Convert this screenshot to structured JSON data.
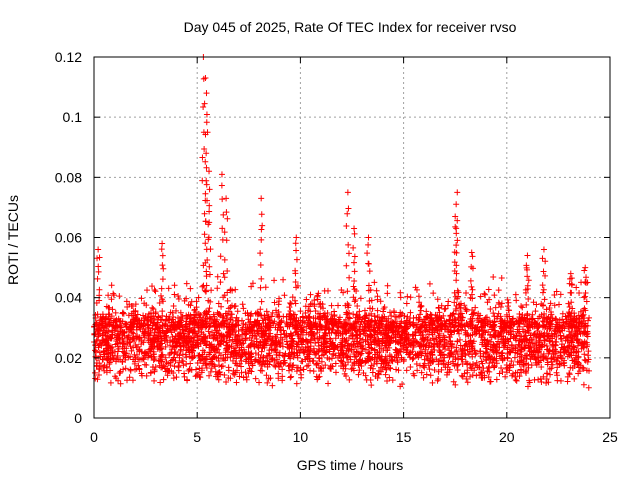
{
  "chart_data": {
    "type": "scatter",
    "title": "Day 045 of 2025, Rate Of TEC Index for receiver rvso",
    "xlabel": "GPS time / hours",
    "ylabel": "ROTI / TECUs",
    "xlim": [
      0,
      25
    ],
    "ylim": [
      0,
      0.12
    ],
    "x_ticks": [
      "0",
      "5",
      "10",
      "15",
      "20",
      "25"
    ],
    "y_ticks": [
      "0",
      "0.02",
      "0.04",
      "0.06",
      "0.08",
      "0.1",
      "0.12"
    ],
    "grid": true,
    "marker": "+",
    "series": [
      {
        "name": "ROTI",
        "color": "#ff0000",
        "x_range": [
          0,
          24
        ],
        "baseline_band": [
          0.007,
          0.035
        ],
        "peaks": [
          {
            "x": 0.2,
            "y": 0.056
          },
          {
            "x": 3.3,
            "y": 0.058
          },
          {
            "x": 5.3,
            "y": 0.12
          },
          {
            "x": 5.4,
            "y": 0.113
          },
          {
            "x": 5.45,
            "y": 0.108
          },
          {
            "x": 5.5,
            "y": 0.095
          },
          {
            "x": 5.6,
            "y": 0.076
          },
          {
            "x": 6.2,
            "y": 0.081
          },
          {
            "x": 6.4,
            "y": 0.073
          },
          {
            "x": 8.1,
            "y": 0.073
          },
          {
            "x": 9.8,
            "y": 0.06
          },
          {
            "x": 12.3,
            "y": 0.075
          },
          {
            "x": 12.6,
            "y": 0.063
          },
          {
            "x": 13.3,
            "y": 0.06
          },
          {
            "x": 17.6,
            "y": 0.075
          },
          {
            "x": 17.5,
            "y": 0.067
          },
          {
            "x": 18.3,
            "y": 0.055
          },
          {
            "x": 21.0,
            "y": 0.054
          },
          {
            "x": 21.8,
            "y": 0.056
          },
          {
            "x": 23.1,
            "y": 0.048
          },
          {
            "x": 23.8,
            "y": 0.05
          }
        ]
      }
    ]
  }
}
